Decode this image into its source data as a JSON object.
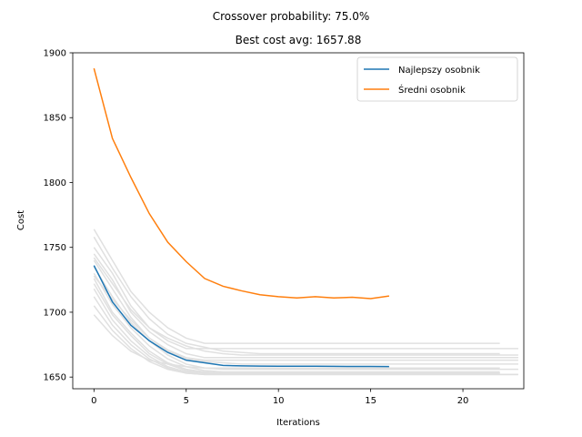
{
  "chart_data": {
    "type": "line",
    "suptitle": "Crossover probability: 75.0%",
    "title": "Best cost avg: 1657.88",
    "xlabel": "Iterations",
    "ylabel": "Cost",
    "xlim": [
      -1.15,
      23.3
    ],
    "ylim": [
      1641,
      1900
    ],
    "xticks": [
      0,
      5,
      10,
      15,
      20
    ],
    "yticks": [
      1650,
      1700,
      1750,
      1800,
      1850,
      1900
    ],
    "grid": false,
    "legend_position": "top-right",
    "colors": {
      "best": "#1f77b4",
      "mean": "#ff7f0e",
      "runs": "#e0e0e0"
    },
    "series": [
      {
        "name": "Najlepszy osobnik",
        "color": "#1f77b4",
        "x": [
          0,
          1,
          2,
          3,
          4,
          5,
          6,
          7,
          8,
          9,
          10,
          11,
          12,
          13,
          14,
          15,
          16
        ],
        "y": [
          1736,
          1708,
          1690,
          1678,
          1669,
          1663,
          1661,
          1659,
          1658.6,
          1658.5,
          1658.4,
          1658.4,
          1658.4,
          1658.3,
          1658.2,
          1658.2,
          1658.1
        ]
      },
      {
        "name": "Średni osobnik",
        "color": "#ff7f0e",
        "x": [
          0,
          1,
          2,
          3,
          4,
          5,
          6,
          7,
          8,
          9,
          10,
          11,
          12,
          13,
          14,
          15,
          16
        ],
        "y": [
          1888,
          1834,
          1804,
          1776,
          1754,
          1739,
          1726,
          1720,
          1716.5,
          1713.5,
          1712,
          1711,
          1712,
          1711,
          1711.5,
          1710.5,
          1712.5
        ]
      }
    ],
    "background_runs": [
      {
        "x": [
          0,
          1,
          2,
          3,
          4,
          5,
          6,
          7,
          8,
          9,
          10,
          11,
          12,
          13,
          14,
          15,
          16,
          17,
          18,
          19,
          20,
          21,
          22
        ],
        "y": [
          1764,
          1740,
          1716,
          1700,
          1688,
          1680,
          1676,
          1676,
          1676,
          1676,
          1676,
          1676,
          1676,
          1676,
          1676,
          1676,
          1676,
          1676,
          1676,
          1676,
          1676,
          1676,
          1676
        ]
      },
      {
        "x": [
          0,
          1,
          2,
          3,
          4,
          5,
          6,
          7,
          8,
          9,
          10,
          11,
          12,
          13,
          14,
          15,
          16,
          17,
          18,
          19,
          20,
          21,
          22
        ],
        "y": [
          1758,
          1734,
          1712,
          1695,
          1683,
          1676,
          1673,
          1670,
          1669,
          1668,
          1668,
          1668,
          1668,
          1668,
          1668,
          1668,
          1668,
          1668,
          1668,
          1668,
          1668,
          1668,
          1668
        ]
      },
      {
        "x": [
          0,
          1,
          2,
          3,
          4,
          5,
          6,
          7,
          8,
          9,
          10,
          11,
          12,
          13,
          14,
          15,
          16,
          17,
          18,
          19,
          20,
          21,
          22,
          23
        ],
        "y": [
          1750,
          1730,
          1705,
          1688,
          1678,
          1672,
          1672,
          1672,
          1672,
          1672,
          1672,
          1672,
          1672,
          1672,
          1672,
          1672,
          1672,
          1672,
          1672,
          1672,
          1672,
          1672,
          1672,
          1672
        ]
      },
      {
        "x": [
          0,
          1,
          2,
          3,
          4,
          5,
          6,
          7,
          8,
          9,
          10,
          11,
          12,
          13,
          14,
          15,
          16,
          17,
          18,
          19,
          20,
          21,
          22,
          23
        ],
        "y": [
          1745,
          1725,
          1700,
          1685,
          1675,
          1668,
          1665,
          1665,
          1665,
          1665,
          1665,
          1665,
          1665,
          1665,
          1665,
          1665,
          1665,
          1665,
          1665,
          1665,
          1665,
          1665,
          1665,
          1665
        ]
      },
      {
        "x": [
          0,
          1,
          2,
          3,
          4,
          5,
          6,
          7,
          8,
          9,
          10,
          11,
          12,
          13,
          14,
          15,
          16,
          17,
          18,
          19,
          20,
          21,
          22,
          23
        ],
        "y": [
          1740,
          1718,
          1696,
          1680,
          1670,
          1664,
          1662,
          1661,
          1660,
          1660,
          1660,
          1660,
          1660,
          1660,
          1660,
          1660,
          1660,
          1660,
          1660,
          1660,
          1660,
          1660,
          1660,
          1660
        ]
      },
      {
        "x": [
          0,
          1,
          2,
          3,
          4,
          5,
          6,
          7,
          8,
          9,
          10,
          11,
          12,
          13,
          14,
          15,
          16,
          17,
          18,
          19,
          20,
          21,
          22,
          23
        ],
        "y": [
          1735,
          1712,
          1692,
          1678,
          1667,
          1660,
          1657,
          1656,
          1656,
          1656,
          1656,
          1656,
          1656,
          1656,
          1656,
          1656,
          1656,
          1656,
          1656,
          1656,
          1656,
          1656,
          1656,
          1656
        ]
      },
      {
        "x": [
          0,
          1,
          2,
          3,
          4,
          5,
          6,
          7,
          8,
          9,
          10,
          11,
          12,
          13,
          14,
          15,
          16,
          17,
          18,
          19,
          20,
          21,
          22
        ],
        "y": [
          1730,
          1706,
          1688,
          1674,
          1664,
          1658,
          1655,
          1654,
          1654,
          1654,
          1654,
          1654,
          1654,
          1654,
          1654,
          1654,
          1654,
          1654,
          1654,
          1654,
          1654,
          1654,
          1654
        ]
      },
      {
        "x": [
          0,
          1,
          2,
          3,
          4,
          5,
          6,
          7,
          8,
          9,
          10,
          11,
          12,
          13,
          14,
          15,
          16,
          17,
          18,
          19,
          20,
          21,
          22
        ],
        "y": [
          1726,
          1700,
          1684,
          1670,
          1661,
          1656,
          1654,
          1653,
          1653,
          1653,
          1653,
          1653,
          1653,
          1653,
          1653,
          1653,
          1653,
          1653,
          1653,
          1653,
          1653,
          1653,
          1653
        ]
      },
      {
        "x": [
          0,
          1,
          2,
          3,
          4,
          5,
          6,
          7,
          8,
          9,
          10,
          11,
          12,
          13,
          14,
          15,
          16,
          17,
          18,
          19,
          20,
          21,
          22
        ],
        "y": [
          1722,
          1698,
          1682,
          1668,
          1660,
          1655,
          1653,
          1653,
          1653,
          1653,
          1653,
          1653,
          1653,
          1653,
          1653,
          1653,
          1653,
          1653,
          1653,
          1653,
          1653,
          1653,
          1653
        ]
      },
      {
        "x": [
          0,
          1,
          2,
          3,
          4,
          5,
          6,
          7,
          8,
          9,
          10,
          11,
          12,
          13,
          14,
          15,
          16,
          17,
          18,
          19,
          20,
          21,
          22
        ],
        "y": [
          1718,
          1694,
          1678,
          1666,
          1658,
          1654,
          1653,
          1653,
          1653,
          1653,
          1653,
          1653,
          1653,
          1653,
          1653,
          1653,
          1653,
          1653,
          1653,
          1653,
          1653,
          1653,
          1653
        ]
      },
      {
        "x": [
          0,
          1,
          2,
          3,
          4,
          5,
          6,
          7,
          8,
          9,
          10,
          11,
          12,
          13,
          14,
          15,
          16,
          17,
          18,
          19,
          20,
          21,
          22,
          23
        ],
        "y": [
          1712,
          1690,
          1675,
          1664,
          1657,
          1653,
          1652,
          1652,
          1652,
          1652,
          1652,
          1652,
          1652,
          1652,
          1652,
          1652,
          1652,
          1652,
          1652,
          1652,
          1652,
          1652,
          1652,
          1652
        ]
      },
      {
        "x": [
          0,
          1,
          2,
          3,
          4,
          5,
          6,
          7,
          8,
          9,
          10,
          11,
          12,
          13,
          14,
          15,
          16,
          17,
          18,
          19,
          20,
          21,
          22,
          23
        ],
        "y": [
          1705,
          1686,
          1672,
          1662,
          1656,
          1653,
          1652,
          1652,
          1652,
          1652,
          1652,
          1652,
          1652,
          1652,
          1652,
          1652,
          1652,
          1652,
          1652,
          1652,
          1652,
          1652,
          1652,
          1652
        ]
      },
      {
        "x": [
          0,
          1,
          2,
          3,
          4,
          5,
          6,
          7,
          8,
          9,
          10,
          11,
          12,
          13,
          14,
          15,
          16,
          17,
          18,
          19,
          20,
          21,
          22
        ],
        "y": [
          1698,
          1682,
          1670,
          1663,
          1660,
          1658,
          1657,
          1657,
          1657,
          1657,
          1657,
          1657,
          1657,
          1657,
          1657,
          1657,
          1657,
          1657,
          1657,
          1657,
          1657,
          1657,
          1657
        ]
      },
      {
        "x": [
          0,
          1,
          2,
          3,
          4,
          5,
          6,
          7,
          8,
          9,
          10,
          11,
          12,
          13,
          14,
          15,
          16,
          17,
          18,
          19,
          20,
          21,
          22,
          23
        ],
        "y": [
          1742,
          1722,
          1702,
          1688,
          1680,
          1674,
          1670,
          1668,
          1667,
          1667,
          1667,
          1667,
          1667,
          1667,
          1667,
          1667,
          1667,
          1667,
          1667,
          1667,
          1667,
          1667,
          1667,
          1667
        ]
      },
      {
        "x": [
          0,
          1,
          2,
          3,
          4,
          5,
          6,
          7,
          8,
          9,
          10,
          11,
          12,
          13,
          14,
          15,
          16,
          17,
          18,
          19,
          20,
          21,
          22,
          23
        ],
        "y": [
          1728,
          1710,
          1694,
          1680,
          1671,
          1665,
          1663,
          1663,
          1663,
          1663,
          1663,
          1663,
          1663,
          1663,
          1663,
          1663,
          1663,
          1663,
          1663,
          1663,
          1663,
          1663,
          1663,
          1663
        ]
      }
    ]
  }
}
